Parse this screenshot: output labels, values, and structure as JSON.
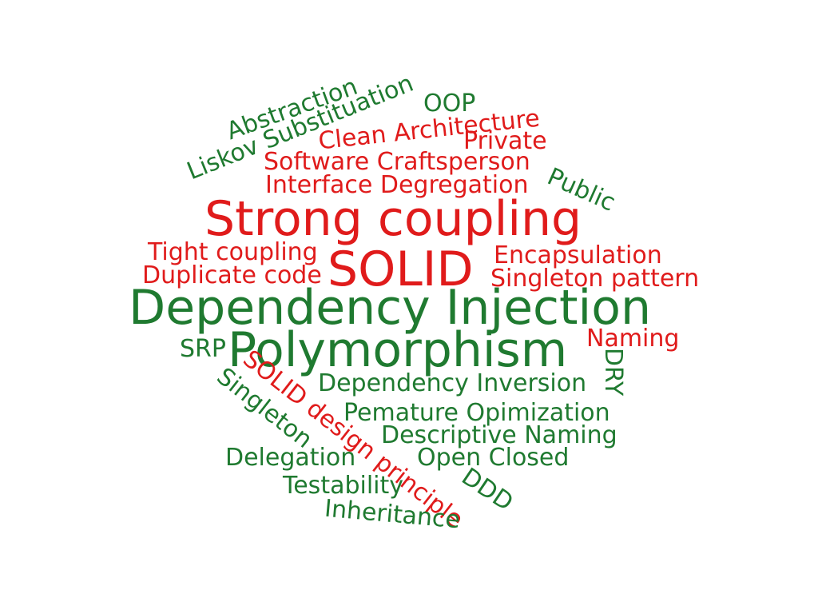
{
  "colors": {
    "green": "#1f7a30",
    "red": "#e01b1b",
    "background": "#ffffff"
  },
  "words": [
    {
      "text": "Abstraction",
      "color": "green"
    },
    {
      "text": "Liskov Substituation",
      "color": "green"
    },
    {
      "text": "OOP",
      "color": "green"
    },
    {
      "text": "Clean Architecture",
      "color": "red"
    },
    {
      "text": "Private",
      "color": "red"
    },
    {
      "text": "Software Craftsperson",
      "color": "red"
    },
    {
      "text": "Interface Degregation",
      "color": "red"
    },
    {
      "text": "Public",
      "color": "green"
    },
    {
      "text": "Strong coupling",
      "color": "red"
    },
    {
      "text": "Tight coupling",
      "color": "red"
    },
    {
      "text": "SOLID",
      "color": "red"
    },
    {
      "text": "Encapsulation",
      "color": "red"
    },
    {
      "text": "Duplicate code",
      "color": "red"
    },
    {
      "text": "Singleton pattern",
      "color": "red"
    },
    {
      "text": "Dependency Injection",
      "color": "green"
    },
    {
      "text": "Naming",
      "color": "red"
    },
    {
      "text": "SRP",
      "color": "green"
    },
    {
      "text": "Polymorphism",
      "color": "green"
    },
    {
      "text": "DRY",
      "color": "green"
    },
    {
      "text": "Dependency Inversion",
      "color": "green"
    },
    {
      "text": "SOLID design principle",
      "color": "red"
    },
    {
      "text": "Singleton",
      "color": "green"
    },
    {
      "text": "Pemature Opimization",
      "color": "green"
    },
    {
      "text": "Descriptive Naming",
      "color": "green"
    },
    {
      "text": "Delegation",
      "color": "green"
    },
    {
      "text": "Open Closed",
      "color": "green"
    },
    {
      "text": "DDD",
      "color": "green"
    },
    {
      "text": "Testability",
      "color": "green"
    },
    {
      "text": "Inheritance",
      "color": "green"
    }
  ]
}
